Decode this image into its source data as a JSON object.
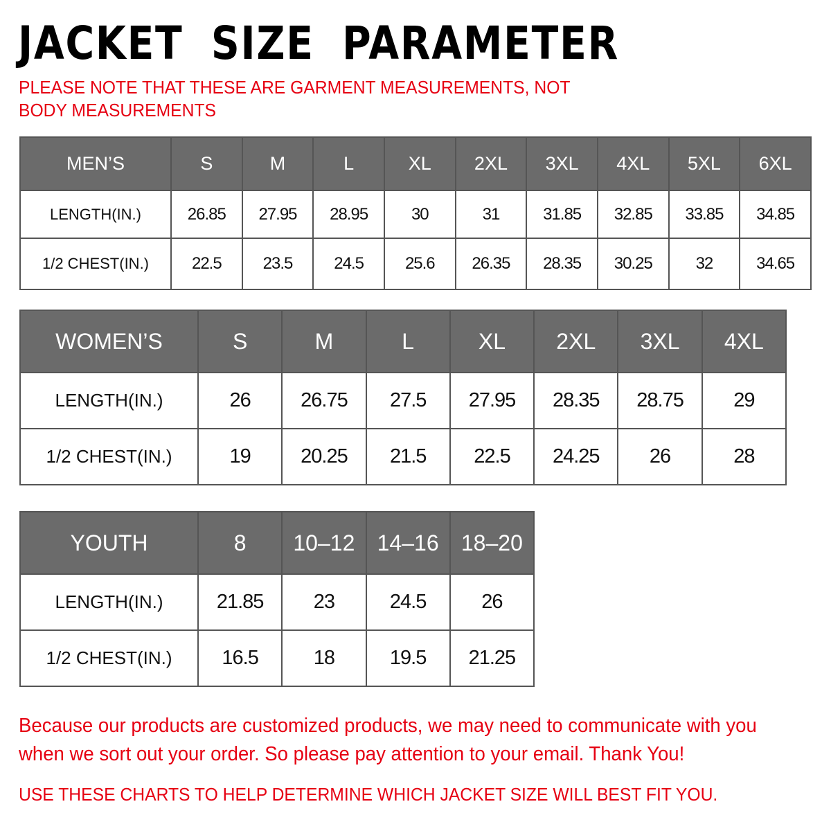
{
  "title": "JACKET SIZE PARAMETER",
  "note": "PLEASE NOTE THAT THESE ARE GARMENT MEASUREMENTS, NOT BODY MEASUREMENTS",
  "colors": {
    "header_bg": "#6b6b6b",
    "accent_red": "#e60012"
  },
  "tables": {
    "men": {
      "header": [
        "MEN’S",
        "S",
        "M",
        "L",
        "XL",
        "2XL",
        "3XL",
        "4XL",
        "5XL",
        "6XL"
      ],
      "rows": [
        [
          "LENGTH(IN.)",
          "26.85",
          "27.95",
          "28.95",
          "30",
          "31",
          "31.85",
          "32.85",
          "33.85",
          "34.85"
        ],
        [
          "1/2 CHEST(IN.)",
          "22.5",
          "23.5",
          "24.5",
          "25.6",
          "26.35",
          "28.35",
          "30.25",
          "32",
          "34.65"
        ]
      ]
    },
    "women": {
      "header": [
        "WOMEN’S",
        "S",
        "M",
        "L",
        "XL",
        "2XL",
        "3XL",
        "4XL"
      ],
      "rows": [
        [
          "LENGTH(IN.)",
          "26",
          "26.75",
          "27.5",
          "27.95",
          "28.35",
          "28.75",
          "29"
        ],
        [
          "1/2 CHEST(IN.)",
          "19",
          "20.25",
          "21.5",
          "22.5",
          "24.25",
          "26",
          "28"
        ]
      ]
    },
    "youth": {
      "header": [
        "YOUTH",
        "8",
        "10–12",
        "14–16",
        "18–20"
      ],
      "rows": [
        [
          "LENGTH(IN.)",
          "21.85",
          "23",
          "24.5",
          "26"
        ],
        [
          "1/2 CHEST(IN.)",
          "16.5",
          "18",
          "19.5",
          "21.25"
        ]
      ]
    }
  },
  "footer": {
    "message": "Because our products are customized products, we may need to communicate with you when we sort out your order. So please pay attention to your email. Thank You!",
    "advice": "USE THESE CHARTS TO HELP DETERMINE WHICH JACKET SIZE WILL BEST FIT YOU."
  }
}
